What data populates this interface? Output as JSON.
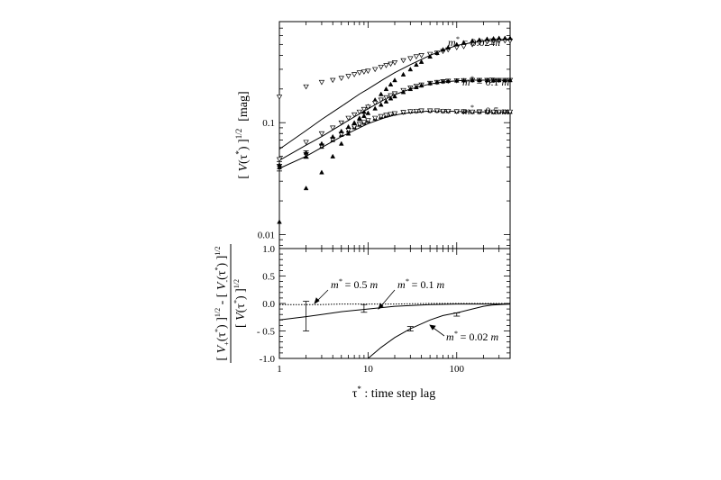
{
  "chart_data": [
    {
      "type": "scatter",
      "panel": "top",
      "x_scale": "log",
      "y_scale": "log",
      "xlim": [
        1,
        400
      ],
      "ylim": [
        0.0075,
        0.8
      ],
      "ylabel_parts": {
        "open": "[ ",
        "v": "V",
        "paren_open": "(",
        "tau": "τ",
        "star": "*",
        "paren_close": ")",
        "close": " ]",
        "exp": "1/2",
        "unit": "[mag]"
      },
      "y_ticks": [
        {
          "v": 0.01,
          "label": "0.01"
        },
        {
          "v": 0.1,
          "label": "0.1"
        }
      ],
      "annotations": [
        {
          "prefix": "m",
          "sup": "*",
          "rest": " = 0.02 ",
          "unit": "m"
        },
        {
          "prefix": "m",
          "sup": "*",
          "rest": " = 0.1 ",
          "unit": "m"
        },
        {
          "prefix": "m",
          "sup": "*",
          "rest": " = 0.5 ",
          "unit": "m"
        }
      ],
      "series": [
        {
          "marker": "open-triangle-down",
          "x": [
            1,
            2,
            3,
            4,
            5,
            6,
            7,
            8,
            9,
            10,
            12,
            14,
            16,
            18,
            20,
            25,
            30,
            35,
            40,
            50,
            60,
            70,
            80,
            100,
            120,
            150,
            180,
            220,
            260,
            300,
            350,
            400
          ],
          "y": [
            0.17,
            0.21,
            0.23,
            0.24,
            0.25,
            0.26,
            0.27,
            0.28,
            0.285,
            0.29,
            0.3,
            0.315,
            0.325,
            0.335,
            0.345,
            0.36,
            0.375,
            0.39,
            0.4,
            0.41,
            0.42,
            0.435,
            0.45,
            0.47,
            0.48,
            0.5,
            0.52,
            0.53,
            0.54,
            0.54,
            0.54,
            0.54
          ]
        },
        {
          "marker": "filled-triangle-up",
          "x": [
            1,
            2,
            3,
            4,
            5,
            6,
            7,
            8,
            9,
            10,
            12,
            14,
            16,
            18,
            20,
            25,
            30,
            35,
            40,
            50,
            60,
            70,
            80,
            100,
            120,
            150,
            180,
            220,
            260,
            300,
            350,
            400
          ],
          "y": [
            0.013,
            0.026,
            0.036,
            0.05,
            0.065,
            0.08,
            0.095,
            0.11,
            0.125,
            0.14,
            0.16,
            0.18,
            0.2,
            0.22,
            0.24,
            0.27,
            0.3,
            0.33,
            0.35,
            0.39,
            0.42,
            0.45,
            0.47,
            0.5,
            0.52,
            0.54,
            0.55,
            0.56,
            0.565,
            0.57,
            0.57,
            0.57
          ]
        },
        {
          "marker": "open-triangle-down",
          "x": [
            1,
            2,
            3,
            4,
            5,
            6,
            7,
            8,
            9,
            10,
            12,
            14,
            16,
            18,
            20,
            25,
            30,
            35,
            40,
            50,
            60,
            70,
            80,
            100,
            120,
            150,
            180,
            220,
            260,
            300,
            350,
            400
          ],
          "y": [
            0.047,
            0.067,
            0.08,
            0.09,
            0.1,
            0.11,
            0.118,
            0.125,
            0.132,
            0.138,
            0.15,
            0.16,
            0.168,
            0.175,
            0.182,
            0.195,
            0.205,
            0.213,
            0.218,
            0.226,
            0.23,
            0.234,
            0.236,
            0.238,
            0.239,
            0.24,
            0.24,
            0.24,
            0.24,
            0.24,
            0.24,
            0.24
          ]
        },
        {
          "marker": "filled-triangle-up",
          "x": [
            1,
            2,
            3,
            4,
            5,
            6,
            7,
            8,
            9,
            10,
            12,
            14,
            16,
            18,
            20,
            25,
            30,
            35,
            40,
            50,
            60,
            70,
            80,
            100,
            120,
            150,
            180,
            220,
            260,
            300,
            350,
            400
          ],
          "y": [
            0.04,
            0.05,
            0.061,
            0.07,
            0.078,
            0.085,
            0.091,
            0.096,
            0.1,
            0.104,
            0.109,
            0.113,
            0.116,
            0.119,
            0.121,
            0.124,
            0.126,
            0.127,
            0.128,
            0.128,
            0.128,
            0.127,
            0.127,
            0.126,
            0.126,
            0.125,
            0.125,
            0.125,
            0.125,
            0.125,
            0.125,
            0.125
          ]
        },
        {
          "marker": "open-triangle-down",
          "x": [
            1,
            2,
            3,
            4,
            5,
            6,
            7,
            8,
            9,
            10,
            12,
            14,
            16,
            18,
            20,
            25,
            30,
            35,
            40,
            50,
            60,
            70,
            80,
            100,
            120,
            150,
            180,
            220,
            260,
            300,
            350,
            400
          ],
          "y": [
            0.041,
            0.052,
            0.062,
            0.071,
            0.079,
            0.086,
            0.092,
            0.097,
            0.101,
            0.105,
            0.11,
            0.114,
            0.117,
            0.119,
            0.121,
            0.124,
            0.126,
            0.127,
            0.128,
            0.128,
            0.128,
            0.127,
            0.127,
            0.126,
            0.126,
            0.125,
            0.125,
            0.125,
            0.125,
            0.125,
            0.125,
            0.125
          ]
        },
        {
          "marker": "filled-triangle-up",
          "x": [
            1,
            2,
            3,
            4,
            5,
            6,
            7,
            8,
            9,
            10,
            12,
            14,
            16,
            18,
            20,
            25,
            30,
            35,
            40,
            50,
            60,
            70,
            80,
            100,
            120,
            150,
            180,
            220,
            260,
            300,
            350,
            400
          ],
          "y": [
            0.042,
            0.054,
            0.065,
            0.075,
            0.084,
            0.092,
            0.1,
            0.108,
            0.115,
            0.122,
            0.134,
            0.145,
            0.155,
            0.165,
            0.172,
            0.188,
            0.2,
            0.208,
            0.215,
            0.225,
            0.23,
            0.234,
            0.236,
            0.238,
            0.239,
            0.24,
            0.24,
            0.24,
            0.24,
            0.24,
            0.24,
            0.24
          ]
        }
      ],
      "curves": [
        {
          "style": "solid",
          "x": [
            1,
            2,
            3,
            5,
            8,
            10,
            15,
            20,
            30,
            50,
            70,
            100,
            150,
            200,
            300,
            400
          ],
          "y": [
            0.058,
            0.085,
            0.107,
            0.14,
            0.18,
            0.2,
            0.245,
            0.28,
            0.33,
            0.4,
            0.445,
            0.49,
            0.52,
            0.535,
            0.545,
            0.55
          ]
        },
        {
          "style": "solid",
          "x": [
            1,
            2,
            3,
            5,
            8,
            10,
            15,
            20,
            30,
            50,
            70,
            100,
            150,
            200,
            300,
            400
          ],
          "y": [
            0.046,
            0.063,
            0.075,
            0.096,
            0.12,
            0.133,
            0.16,
            0.178,
            0.2,
            0.222,
            0.231,
            0.237,
            0.24,
            0.24,
            0.24,
            0.24
          ]
        },
        {
          "style": "solid",
          "x": [
            1,
            2,
            3,
            5,
            8,
            10,
            15,
            20,
            30,
            50,
            70,
            100,
            150,
            200,
            300,
            400
          ],
          "y": [
            0.039,
            0.05,
            0.06,
            0.075,
            0.09,
            0.098,
            0.11,
            0.117,
            0.123,
            0.127,
            0.127,
            0.126,
            0.125,
            0.125,
            0.125,
            0.125
          ]
        }
      ],
      "error_bars": [
        {
          "x": 1,
          "y": 0.041,
          "lo": 0.037,
          "hi": 0.045
        },
        {
          "x": 2,
          "y": 0.052,
          "lo": 0.048,
          "hi": 0.056
        },
        {
          "x": 250,
          "y": 0.53,
          "lo": 0.5,
          "hi": 0.56
        },
        {
          "x": 250,
          "y": 0.24,
          "lo": 0.23,
          "hi": 0.25
        }
      ]
    },
    {
      "type": "line",
      "panel": "bottom",
      "x_scale": "log",
      "xlim": [
        1,
        400
      ],
      "ylim": [
        -1.0,
        1.0
      ],
      "x_ticks": [
        {
          "v": 1,
          "label": "1"
        },
        {
          "v": 10,
          "label": "10"
        },
        {
          "v": 100,
          "label": "100"
        }
      ],
      "y_ticks": [
        {
          "v": 1.0,
          "label": "1.0"
        },
        {
          "v": 0.5,
          "label": "0.5"
        },
        {
          "v": 0.0,
          "label": "0.0"
        },
        {
          "v": -0.5,
          "label": "- 0.5"
        },
        {
          "v": -1.0,
          "label": "-1.0"
        }
      ],
      "xlabel_parts": {
        "tau": "τ",
        "star": "*",
        "rest": "  :  time step lag"
      },
      "ylabel_num": {
        "o1": "[ ",
        "v1": "V",
        "s1": "+",
        "a1": "(τ",
        "u1": "*",
        "c1": ") ]",
        "e1": "1/2",
        "minus": " - [ ",
        "v2": "V",
        "s2": "-",
        "a2": "(τ",
        "u2": "*",
        "c2": ") ]",
        "e2": "1/2"
      },
      "ylabel_den": {
        "o": "[ ",
        "v": "V",
        "a": "(τ",
        "u": "*",
        "c": ") ]",
        "e": "1/2"
      },
      "annotations": [
        {
          "prefix": "m",
          "sup": "*",
          "rest": " = 0.5 ",
          "unit": "m"
        },
        {
          "prefix": "m",
          "sup": "*",
          "rest": " = 0.1 ",
          "unit": "m"
        },
        {
          "prefix": "m",
          "sup": "*",
          "rest": " = 0.02 ",
          "unit": "m"
        }
      ],
      "series": [
        {
          "style": "dotted",
          "x": [
            1,
            2,
            3,
            5,
            10,
            20,
            50,
            100,
            200,
            400
          ],
          "y": [
            -0.02,
            -0.02,
            -0.02,
            -0.01,
            -0.01,
            -0.01,
            0.0,
            0.0,
            0.0,
            0.0
          ]
        },
        {
          "style": "solid",
          "x": [
            1,
            2,
            3,
            5,
            10,
            20,
            50,
            100,
            200,
            400
          ],
          "y": [
            -0.3,
            -0.24,
            -0.2,
            -0.15,
            -0.1,
            -0.05,
            -0.02,
            -0.01,
            -0.01,
            -0.01
          ]
        },
        {
          "style": "solid",
          "x": [
            10,
            14,
            20,
            30,
            50,
            70,
            100,
            150,
            200,
            250,
            300,
            400
          ],
          "y": [
            -1.0,
            -0.8,
            -0.62,
            -0.46,
            -0.3,
            -0.22,
            -0.17,
            -0.1,
            -0.05,
            -0.03,
            -0.02,
            -0.01
          ]
        }
      ],
      "error_bars": [
        {
          "x": 2,
          "y": -0.22,
          "lo": -0.5,
          "hi": 0.04
        },
        {
          "x": 9,
          "y": -0.08,
          "lo": -0.16,
          "hi": -0.02
        },
        {
          "x": 30,
          "y": -0.46,
          "lo": -0.5,
          "hi": -0.42
        },
        {
          "x": 100,
          "y": -0.2,
          "lo": -0.23,
          "hi": -0.17
        }
      ]
    }
  ]
}
